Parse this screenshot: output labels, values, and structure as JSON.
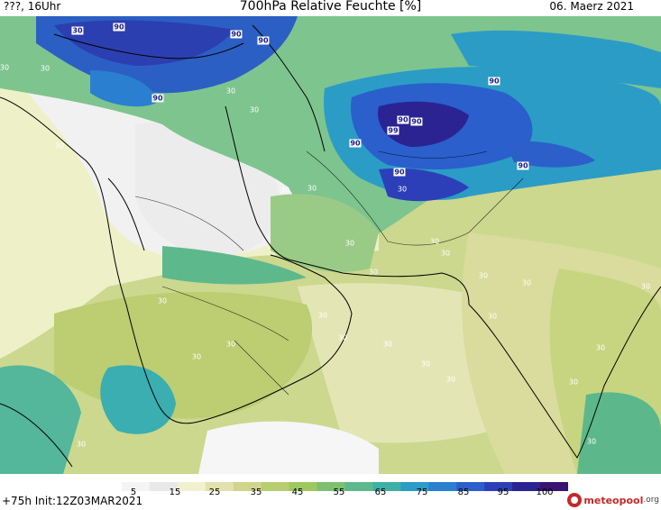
{
  "header": {
    "left": "???, 16Uhr",
    "title": "700hPa Relative Feuchte [%]",
    "right": "06. Maerz 2021"
  },
  "footer": {
    "left": "+75h Init:12Z03MAR2021"
  },
  "logo": {
    "main": "meteopool",
    "suffix": ".org"
  },
  "colorbar": {
    "ticks": [
      "5",
      "15",
      "25",
      "35",
      "45",
      "55",
      "65",
      "75",
      "85",
      "95",
      "100"
    ],
    "colors": [
      "#ffffff",
      "#f4f4f4",
      "#e8e8e8",
      "#f2f1cf",
      "#e3e1ad",
      "#cfd68c",
      "#b8cc72",
      "#9ec760",
      "#7fc070",
      "#5db98c",
      "#3eb0a6",
      "#2b9cc6",
      "#2a7fd0",
      "#2c5fc9",
      "#2d3fb8",
      "#2b2392",
      "#3a1470"
    ],
    "accent": "#c62828"
  },
  "contour_labels": [
    {
      "text": "30",
      "cls": "lbl-90"
    },
    {
      "text": "90",
      "cls": "lbl-90"
    },
    {
      "text": "90",
      "cls": "lbl-90"
    },
    {
      "text": "90",
      "cls": "lbl-90"
    },
    {
      "text": "90",
      "cls": "lbl-90"
    },
    {
      "text": "90",
      "cls": "lbl-90"
    },
    {
      "text": "90",
      "cls": "lbl-90"
    },
    {
      "text": "99",
      "cls": "lbl-90"
    },
    {
      "text": "90",
      "cls": "lbl-90"
    },
    {
      "text": "90",
      "cls": "lbl-90"
    },
    {
      "text": "90",
      "cls": "lbl-90"
    },
    {
      "text": "90",
      "cls": "lbl-90"
    },
    {
      "text": "30",
      "cls": "lbl-30"
    },
    {
      "text": "30",
      "cls": "lbl-30"
    },
    {
      "text": "30",
      "cls": "lbl-30"
    },
    {
      "text": "30",
      "cls": "lbl-30"
    },
    {
      "text": "30",
      "cls": "lbl-30"
    },
    {
      "text": "30",
      "cls": "lbl-30"
    },
    {
      "text": "30",
      "cls": "lbl-30"
    },
    {
      "text": "30",
      "cls": "lbl-30"
    },
    {
      "text": "30",
      "cls": "lbl-30"
    },
    {
      "text": "30",
      "cls": "lbl-30"
    },
    {
      "text": "30",
      "cls": "lbl-30"
    },
    {
      "text": "30",
      "cls": "lbl-30"
    },
    {
      "text": "30",
      "cls": "lbl-30"
    },
    {
      "text": "30",
      "cls": "lbl-30"
    },
    {
      "text": "30",
      "cls": "lbl-30"
    },
    {
      "text": "30",
      "cls": "lbl-30"
    },
    {
      "text": "30",
      "cls": "lbl-30"
    },
    {
      "text": "30",
      "cls": "lbl-30"
    },
    {
      "text": "30",
      "cls": "lbl-30"
    },
    {
      "text": "30",
      "cls": "lbl-30"
    },
    {
      "text": "30",
      "cls": "lbl-30"
    },
    {
      "text": "30",
      "cls": "lbl-30"
    },
    {
      "text": "30",
      "cls": "lbl-30"
    },
    {
      "text": "30",
      "cls": "lbl-30"
    },
    {
      "text": "30",
      "cls": "lbl-30"
    },
    {
      "text": "30",
      "cls": "lbl-30"
    },
    {
      "text": "30",
      "cls": "lbl-30"
    },
    {
      "text": "30",
      "cls": "lbl-30"
    }
  ]
}
